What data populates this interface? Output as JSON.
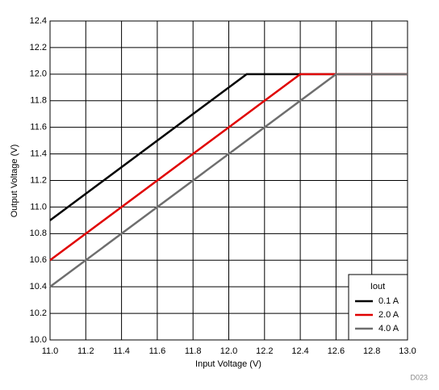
{
  "chart_data": {
    "type": "line",
    "x_label": "Input Voltage (V)",
    "y_label": "Output Voltage (V)",
    "x": [
      11.0,
      12.1,
      12.4,
      12.6,
      13.0
    ],
    "series": [
      {
        "name": "0.1 A",
        "color": "#000000",
        "values": [
          10.9,
          12.0,
          12.0,
          12.0,
          12.0
        ]
      },
      {
        "name": "2.0 A",
        "color": "#e00000",
        "values": [
          10.6,
          11.7,
          12.0,
          12.0,
          12.0
        ]
      },
      {
        "name": "4.0 A",
        "color": "#6e6e6e",
        "values": [
          10.4,
          11.5,
          11.8,
          12.0,
          12.0
        ]
      }
    ],
    "legend_title": "Iout",
    "legend": "bottom-right",
    "grid": true,
    "xlim": [
      11.0,
      13.0
    ],
    "xticks": [
      {
        "value": 11.0,
        "label": "11.0"
      },
      11.2,
      11.4,
      11.6,
      11.8,
      {
        "value": 12.0,
        "label": "12.0"
      },
      12.2,
      12.4,
      12.6,
      12.8,
      {
        "value": 13.0,
        "label": "13.0"
      }
    ],
    "ylim": [
      10.0,
      12.4
    ],
    "yticks": [
      {
        "value": 10.0,
        "label": "10.0"
      },
      10.2,
      10.4,
      10.6,
      10.8,
      {
        "value": 11.0,
        "label": "11.0"
      },
      11.2,
      11.4,
      11.6,
      11.8,
      {
        "value": 12.0,
        "label": "12.0"
      },
      12.2,
      12.4
    ],
    "note": "D023"
  }
}
